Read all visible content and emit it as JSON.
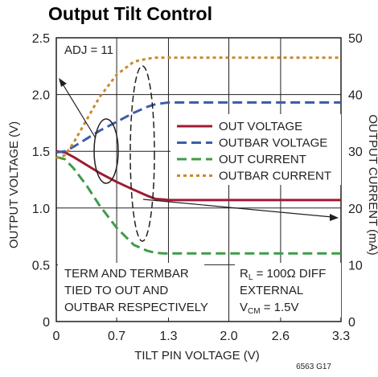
{
  "chart_data": {
    "type": "line",
    "title": "Output Tilt Control",
    "xlabel": "TILT PIN VOLTAGE (V)",
    "ylabel": "OUTPUT VOLTAGE (V)",
    "y2label": "OUTPUT CURRENT (mA)",
    "xlim": [
      0,
      3.3
    ],
    "ylim": [
      0,
      2.5
    ],
    "y2lim": [
      0,
      50
    ],
    "x_ticks": [
      "0",
      "0.7",
      "1.3",
      "2.0",
      "2.6",
      "3.3"
    ],
    "x_tick_values": [
      0,
      0.7,
      1.3,
      2.0,
      2.6,
      3.3
    ],
    "y_ticks": [
      "0",
      "0.5",
      "1.0",
      "1.5",
      "2.0",
      "2.5"
    ],
    "y_tick_values": [
      0,
      0.5,
      1.0,
      1.5,
      2.0,
      2.5
    ],
    "y2_ticks": [
      "0",
      "10",
      "20",
      "30",
      "40",
      "50"
    ],
    "y2_tick_values": [
      0,
      10,
      20,
      30,
      40,
      50
    ],
    "grid": true,
    "legend_position": "right",
    "series": [
      {
        "name": "OUT VOLTAGE",
        "axis": "left",
        "color": "#9e1b32",
        "dash": "solid",
        "x": [
          0,
          0.1,
          0.2,
          0.35,
          0.5,
          0.7,
          0.9,
          1.05,
          1.15,
          1.25,
          1.3,
          1.5,
          3.3
        ],
        "y": [
          1.5,
          1.49,
          1.45,
          1.38,
          1.31,
          1.23,
          1.16,
          1.11,
          1.08,
          1.075,
          1.07,
          1.07,
          1.07
        ]
      },
      {
        "name": "OUTBAR VOLTAGE",
        "axis": "left",
        "color": "#3d5daa",
        "dash": "dashed",
        "x": [
          0,
          0.1,
          0.2,
          0.35,
          0.5,
          0.7,
          0.9,
          1.05,
          1.15,
          1.25,
          1.3,
          1.5,
          3.3
        ],
        "y": [
          1.49,
          1.5,
          1.54,
          1.61,
          1.68,
          1.76,
          1.84,
          1.89,
          1.915,
          1.925,
          1.93,
          1.93,
          1.93
        ]
      },
      {
        "name": "OUT CURRENT",
        "axis": "right",
        "color": "#3f9b48",
        "dash": "dashed",
        "x": [
          0,
          0.1,
          0.2,
          0.35,
          0.5,
          0.7,
          0.9,
          1.05,
          1.15,
          1.25,
          1.3,
          1.5,
          3.3
        ],
        "y": [
          29,
          28.6,
          27,
          24,
          20.5,
          16.5,
          13.5,
          12.5,
          12.1,
          12,
          12,
          12,
          12
        ]
      },
      {
        "name": "OUTBAR CURRENT",
        "axis": "right",
        "color": "#c9892d",
        "dash": "dotted",
        "x": [
          0,
          0.1,
          0.2,
          0.35,
          0.5,
          0.7,
          0.9,
          1.05,
          1.15,
          1.25,
          1.3,
          1.5,
          3.3
        ],
        "y": [
          28.8,
          29.3,
          31.5,
          35.5,
          39.5,
          43.5,
          45.8,
          46.3,
          46.5,
          46.5,
          46.5,
          46.5,
          46.5
        ]
      }
    ],
    "annotations": {
      "adj": "ADJ = 11",
      "term_lines": [
        "TERM AND TERMBAR",
        "TIED TO OUT AND",
        "OUTBAR RESPECTIVELY"
      ],
      "rl_prefix": "R",
      "rl_sub": "L",
      "rl_rest": " = 100Ω DIFF",
      "external": "EXTERNAL",
      "vcm_prefix": "V",
      "vcm_sub": "CM",
      "vcm_rest": " = 1.5V"
    },
    "figure_id": "6563 G17"
  }
}
